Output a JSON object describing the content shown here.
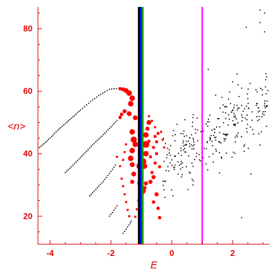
{
  "chart_data": {
    "type": "scatter",
    "title": "",
    "xlabel": "E",
    "ylabel": "<n>",
    "xlim": [
      -4.4,
      3.2
    ],
    "ylim": [
      11,
      87
    ],
    "x_ticks": [
      -4,
      -2,
      0,
      2
    ],
    "y_ticks": [
      20,
      40,
      60,
      80
    ],
    "grid": false,
    "colors": {
      "axis": "#e00000",
      "points_red": "#ff0000",
      "points_black": "#000000",
      "line_black": "#000000",
      "line_blue": "#0000ff",
      "line_green": "#00a000",
      "line_magenta": "#ff00ff"
    },
    "vertical_lines": [
      {
        "x": -1.08,
        "color": "#000000"
      },
      {
        "x": -1.02,
        "color": "#0000ff"
      },
      {
        "x": -0.96,
        "color": "#00a000"
      },
      {
        "x": 1.0,
        "color": "#ff00ff"
      }
    ],
    "series": [
      {
        "marker": "curve",
        "color": "#000000",
        "points": [
          [
            -4.35,
            42
          ],
          [
            -4.2,
            43.2
          ],
          [
            -4.0,
            45
          ],
          [
            -3.8,
            47
          ],
          [
            -3.6,
            48.8
          ],
          [
            -3.4,
            50.5
          ],
          [
            -3.2,
            52.2
          ],
          [
            -3.0,
            54
          ],
          [
            -2.8,
            55.6
          ],
          [
            -2.6,
            57.2
          ],
          [
            -2.4,
            58.6
          ],
          [
            -2.2,
            59.8
          ],
          [
            -2.05,
            60.6
          ],
          [
            -1.9,
            60.8
          ],
          [
            -1.75,
            60.8
          ]
        ]
      },
      {
        "marker": "curve",
        "color": "#000000",
        "points": [
          [
            -3.5,
            34
          ],
          [
            -3.3,
            35.8
          ],
          [
            -3.1,
            37.8
          ],
          [
            -2.9,
            39.8
          ],
          [
            -2.7,
            41.8
          ],
          [
            -2.5,
            43.8
          ],
          [
            -2.3,
            45.6
          ],
          [
            -2.1,
            47.6
          ],
          [
            -1.9,
            49.6
          ],
          [
            -1.75,
            51.2
          ]
        ]
      },
      {
        "marker": "curve",
        "color": "#000000",
        "points": [
          [
            -2.7,
            26.5
          ],
          [
            -2.55,
            28
          ],
          [
            -2.4,
            29.6
          ],
          [
            -2.25,
            31.2
          ],
          [
            -2.1,
            33
          ],
          [
            -1.95,
            35
          ],
          [
            -1.8,
            37
          ]
        ]
      },
      {
        "marker": "curve",
        "color": "#000000",
        "points": [
          [
            -2.05,
            20
          ],
          [
            -1.95,
            21.2
          ],
          [
            -1.85,
            22.6
          ],
          [
            -1.75,
            24
          ]
        ]
      },
      {
        "marker": "curve",
        "color": "#000000",
        "points": [
          [
            -1.6,
            14.5
          ],
          [
            -1.5,
            15.8
          ],
          [
            -1.4,
            17.2
          ],
          [
            -1.3,
            19
          ]
        ]
      },
      {
        "marker": "dot-red",
        "points": [
          [
            -1.7,
            60.8,
            2.5
          ],
          [
            -1.6,
            60.6,
            3
          ],
          [
            -1.5,
            60.2,
            3.5
          ],
          [
            -1.4,
            59.4,
            4
          ],
          [
            -1.3,
            57.8,
            4
          ],
          [
            -1.35,
            56,
            4
          ],
          [
            -1.2,
            51.5,
            3.5
          ],
          [
            -1.4,
            52.8,
            3.5
          ],
          [
            -1.55,
            53.6,
            3
          ],
          [
            -1.65,
            52.6,
            2.5
          ],
          [
            -1.7,
            51.6,
            2.5
          ],
          [
            -1.3,
            47,
            4
          ],
          [
            -1.25,
            44.5,
            4.5
          ],
          [
            -1.2,
            43,
            4
          ],
          [
            -1.3,
            41,
            4
          ],
          [
            -1.35,
            38.5,
            4
          ],
          [
            -1.3,
            36.5,
            3.5
          ],
          [
            -1.25,
            33.5,
            3.5
          ],
          [
            -1.3,
            31,
            3
          ],
          [
            -1.05,
            36,
            5
          ],
          [
            -0.95,
            37.5,
            5
          ],
          [
            -0.9,
            36,
            4
          ],
          [
            -0.85,
            40,
            4
          ],
          [
            -0.85,
            43,
            5
          ],
          [
            -0.85,
            46,
            4
          ],
          [
            -0.8,
            48,
            3
          ],
          [
            -0.75,
            50,
            3.5
          ],
          [
            -0.95,
            28,
            4
          ],
          [
            -0.9,
            29,
            3
          ],
          [
            -0.85,
            30.5,
            3
          ],
          [
            -0.7,
            31,
            3
          ],
          [
            -0.6,
            32.5,
            3
          ],
          [
            -0.5,
            27,
            3
          ],
          [
            -0.6,
            24.5,
            2.5
          ],
          [
            -0.45,
            22.5,
            2.5
          ],
          [
            -0.4,
            19.5,
            2.5
          ],
          [
            -0.75,
            44,
            2
          ],
          [
            -0.6,
            42,
            2
          ],
          [
            -0.5,
            40,
            2
          ],
          [
            -0.55,
            37,
            2
          ],
          [
            -0.4,
            35.8,
            2
          ],
          [
            -0.7,
            39,
            2
          ],
          [
            -0.65,
            34,
            2
          ],
          [
            -0.45,
            46.5,
            2
          ],
          [
            -0.5,
            43.8,
            2
          ],
          [
            -0.55,
            45.5,
            2
          ],
          [
            -1.8,
            39,
            1.5
          ],
          [
            -1.7,
            36,
            1.5
          ],
          [
            -1.65,
            32,
            1.5
          ],
          [
            -1.6,
            29.6,
            1.5
          ],
          [
            -1.55,
            27,
            1.5
          ],
          [
            -1.5,
            24.5,
            1.5
          ],
          [
            -1.45,
            22,
            1.5
          ],
          [
            -1.4,
            20,
            1.5
          ],
          [
            -1.2,
            19.8,
            1.5
          ],
          [
            -1.15,
            22.2,
            1.5
          ],
          [
            -1.1,
            25,
            1.5
          ],
          [
            -1.05,
            27.5,
            1.5
          ],
          [
            -1.1,
            30.5,
            1.5
          ],
          [
            -1.5,
            43,
            1.5
          ],
          [
            -1.55,
            40.5,
            1.5
          ],
          [
            -1.6,
            38,
            1.5
          ],
          [
            -0.75,
            52,
            1.5
          ],
          [
            -0.65,
            50.5,
            1.5
          ],
          [
            -0.55,
            48.5,
            1.5
          ],
          [
            -0.35,
            47,
            1.5
          ],
          [
            -0.3,
            44.5,
            1.5
          ],
          [
            -0.25,
            42,
            1.5
          ]
        ]
      }
    ],
    "scatter_black": {
      "color": "#000000",
      "count": 280,
      "x_range": [
        -0.3,
        3.2
      ],
      "intercept": 38,
      "slope": 5.7,
      "spread": 8,
      "outliers": [
        [
          2.9,
          86
        ],
        [
          3.05,
          85
        ],
        [
          2.45,
          80.5
        ],
        [
          2.9,
          82
        ],
        [
          3.05,
          79
        ],
        [
          1.2,
          67
        ],
        [
          2.15,
          65.5
        ],
        [
          2.0,
          63
        ],
        [
          2.3,
          61
        ],
        [
          2.1,
          49.5
        ],
        [
          1.65,
          58
        ],
        [
          2.6,
          33.5
        ],
        [
          2.3,
          19.5
        ],
        [
          0.35,
          37
        ],
        [
          0.55,
          44
        ],
        [
          0.7,
          30
        ]
      ]
    }
  }
}
